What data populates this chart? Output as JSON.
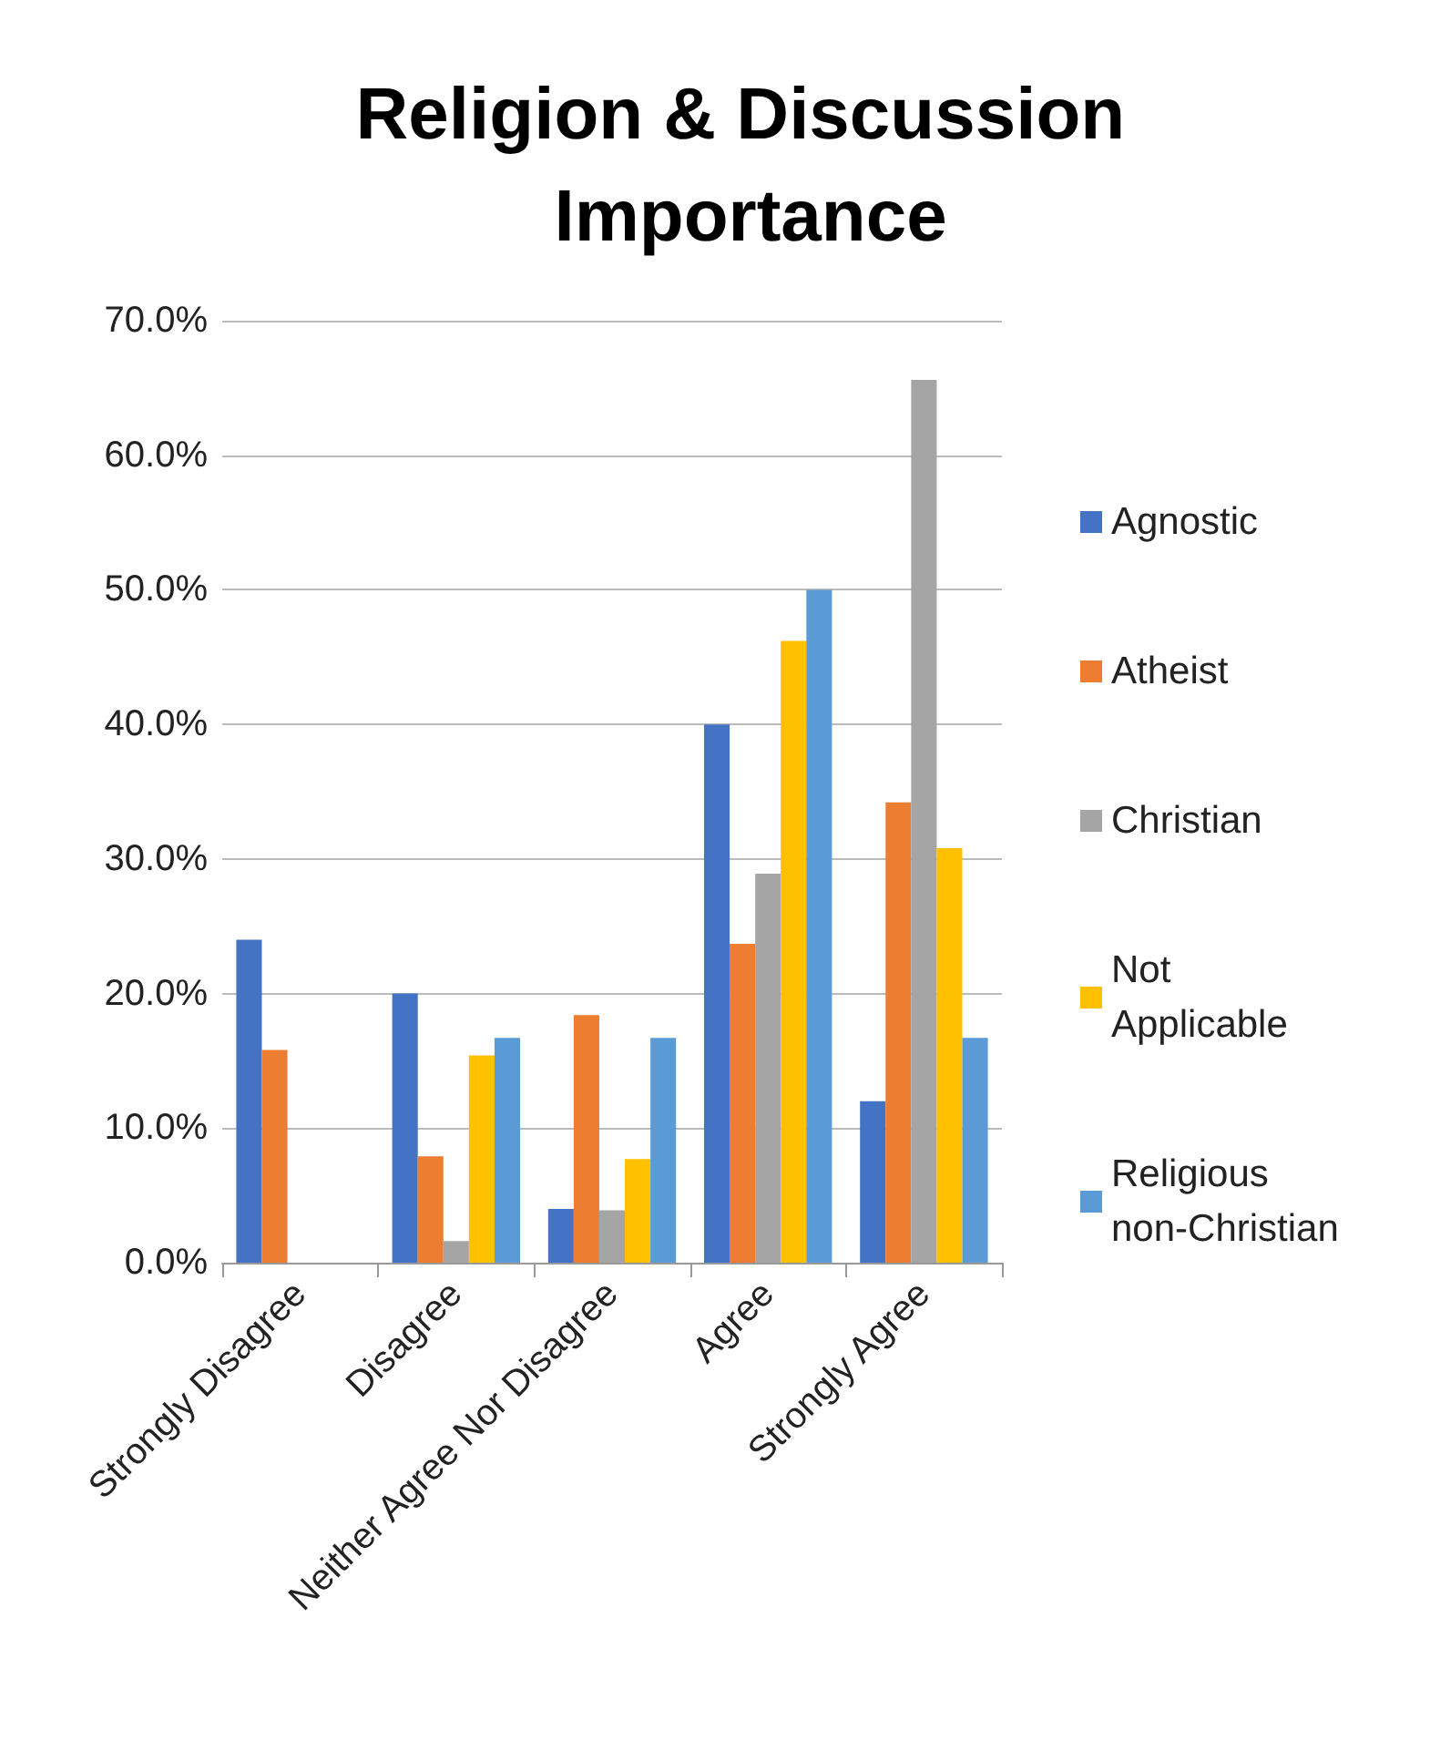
{
  "chart_data": {
    "type": "bar",
    "title": "Religion & Discussion Importance",
    "categories": [
      "Strongly Disagree",
      "Disagree",
      "Neither Agree Nor Disagree",
      "Agree",
      "Strongly Agree"
    ],
    "series": [
      {
        "name": "Agnostic",
        "color": "#4472c4",
        "values": [
          24.0,
          20.0,
          4.0,
          40.0,
          12.0
        ]
      },
      {
        "name": "Atheist",
        "color": "#ed7d31",
        "values": [
          15.8,
          7.9,
          18.4,
          23.7,
          34.2
        ]
      },
      {
        "name": "Christian",
        "color": "#a5a5a5",
        "values": [
          0,
          1.6,
          3.9,
          28.9,
          65.6
        ]
      },
      {
        "name": "Not Applicable",
        "color": "#ffc000",
        "values": [
          0,
          15.4,
          7.7,
          46.2,
          30.8
        ]
      },
      {
        "name": "Religious non-Christian",
        "color": "#5b9bd5",
        "values": [
          0,
          16.7,
          16.7,
          50.0,
          16.7
        ]
      }
    ],
    "ylim": [
      0,
      70
    ],
    "yticks": [
      {
        "value": 0,
        "label": "0.0%"
      },
      {
        "value": 10,
        "label": "10.0%"
      },
      {
        "value": 20,
        "label": "20.0%"
      },
      {
        "value": 30,
        "label": "30.0%"
      },
      {
        "value": 40,
        "label": "40.0%"
      },
      {
        "value": 50,
        "label": "50.0%"
      },
      {
        "value": 60,
        "label": "60.0%"
      },
      {
        "value": 70,
        "label": "70.0%"
      }
    ],
    "grid": "y",
    "legend": "right"
  }
}
